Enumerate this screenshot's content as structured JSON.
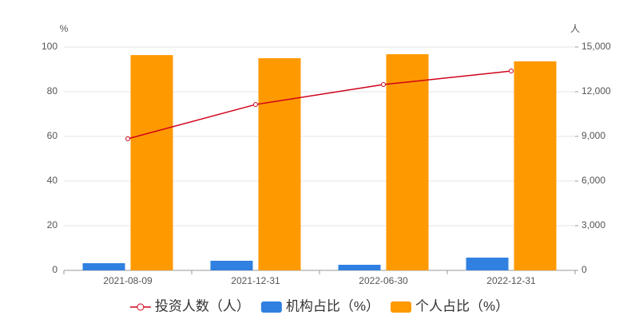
{
  "chart_data": {
    "type": "bar",
    "y_label": "%",
    "y2_label": "人",
    "categories": [
      "2021-08-09",
      "2021-12-31",
      "2022-06-30",
      "2022-12-31"
    ],
    "series": [
      {
        "name": "投资人数（人）",
        "type": "line",
        "axis": "y2",
        "color": "#d0021b",
        "values": [
          8840,
          11140,
          12480,
          13390
        ]
      },
      {
        "name": "机构占比（%）",
        "type": "bar",
        "color": "#2f80e0",
        "values": [
          3.2,
          4.3,
          2.5,
          5.7
        ]
      },
      {
        "name": "个人占比（%）",
        "type": "bar",
        "color": "#ff9900",
        "values": [
          96.4,
          95.0,
          96.8,
          93.6
        ]
      }
    ],
    "ylim": [
      0,
      100
    ],
    "yticks": [
      0,
      20,
      40,
      60,
      80,
      100
    ],
    "y2lim": [
      0,
      15000
    ],
    "y2ticks": [
      0,
      {
        "value": 3000,
        "label": "3,000"
      },
      {
        "value": 6000,
        "label": "6,000"
      },
      {
        "value": 9000,
        "label": "9,000"
      },
      {
        "value": 12000,
        "label": "12,000"
      },
      {
        "value": 15000,
        "label": "15,000"
      }
    ],
    "grid": true,
    "legend": "bottom"
  }
}
